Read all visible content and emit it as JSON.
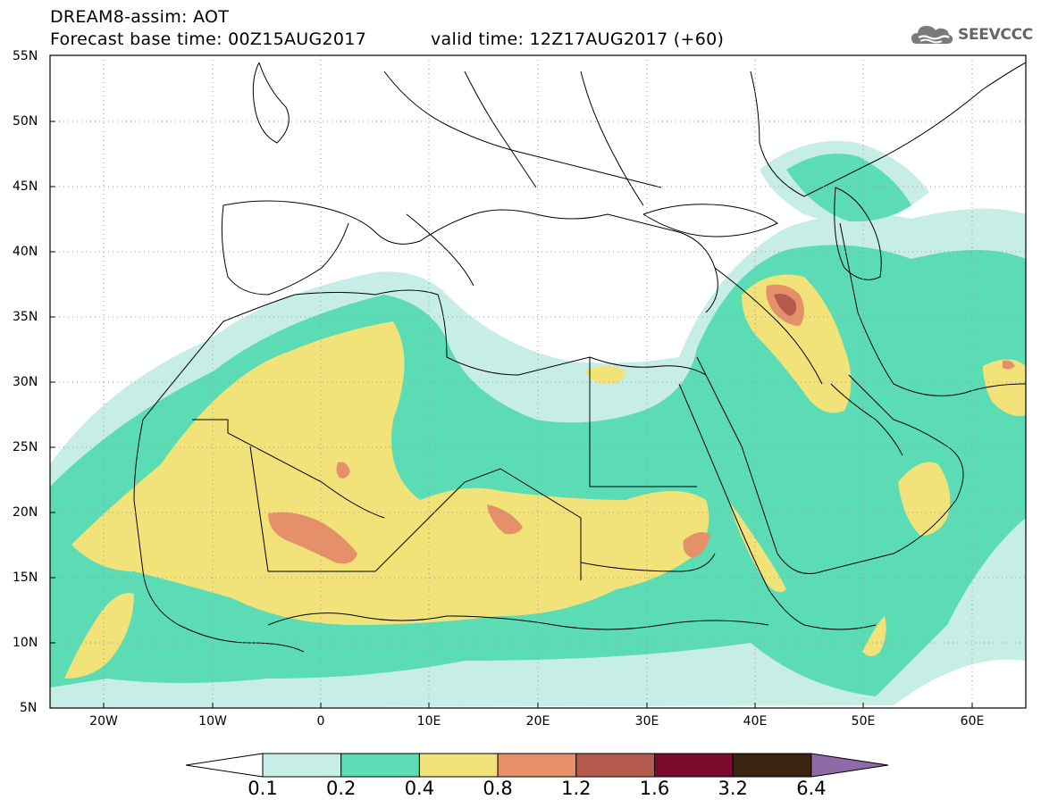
{
  "header": {
    "title_line1": "DREAM8-assim: AOT",
    "title_line2": "Forecast base time: 00Z15AUG2017",
    "valid_time": "valid time: 12Z17AUG2017 (+60)",
    "logo_text": "SEEVCCC"
  },
  "map": {
    "lat_labels": [
      "55N",
      "50N",
      "45N",
      "40N",
      "35N",
      "30N",
      "25N",
      "20N",
      "15N",
      "10N",
      "5N"
    ],
    "lon_labels": [
      "20W",
      "10W",
      "0",
      "10E",
      "20E",
      "30E",
      "40E",
      "50E",
      "60E"
    ],
    "field": "Aerosol optical thickness (AOT)"
  },
  "legend": {
    "levels": [
      "0.1",
      "0.2",
      "0.4",
      "0.8",
      "1.2",
      "1.6",
      "3.2",
      "6.4"
    ],
    "colors": [
      "#ffffff",
      "#c6eee6",
      "#5cdcb4",
      "#f2e27a",
      "#e6906a",
      "#b35a4c",
      "#7a0a2a",
      "#3a2410",
      "#8e6aa6"
    ]
  }
}
